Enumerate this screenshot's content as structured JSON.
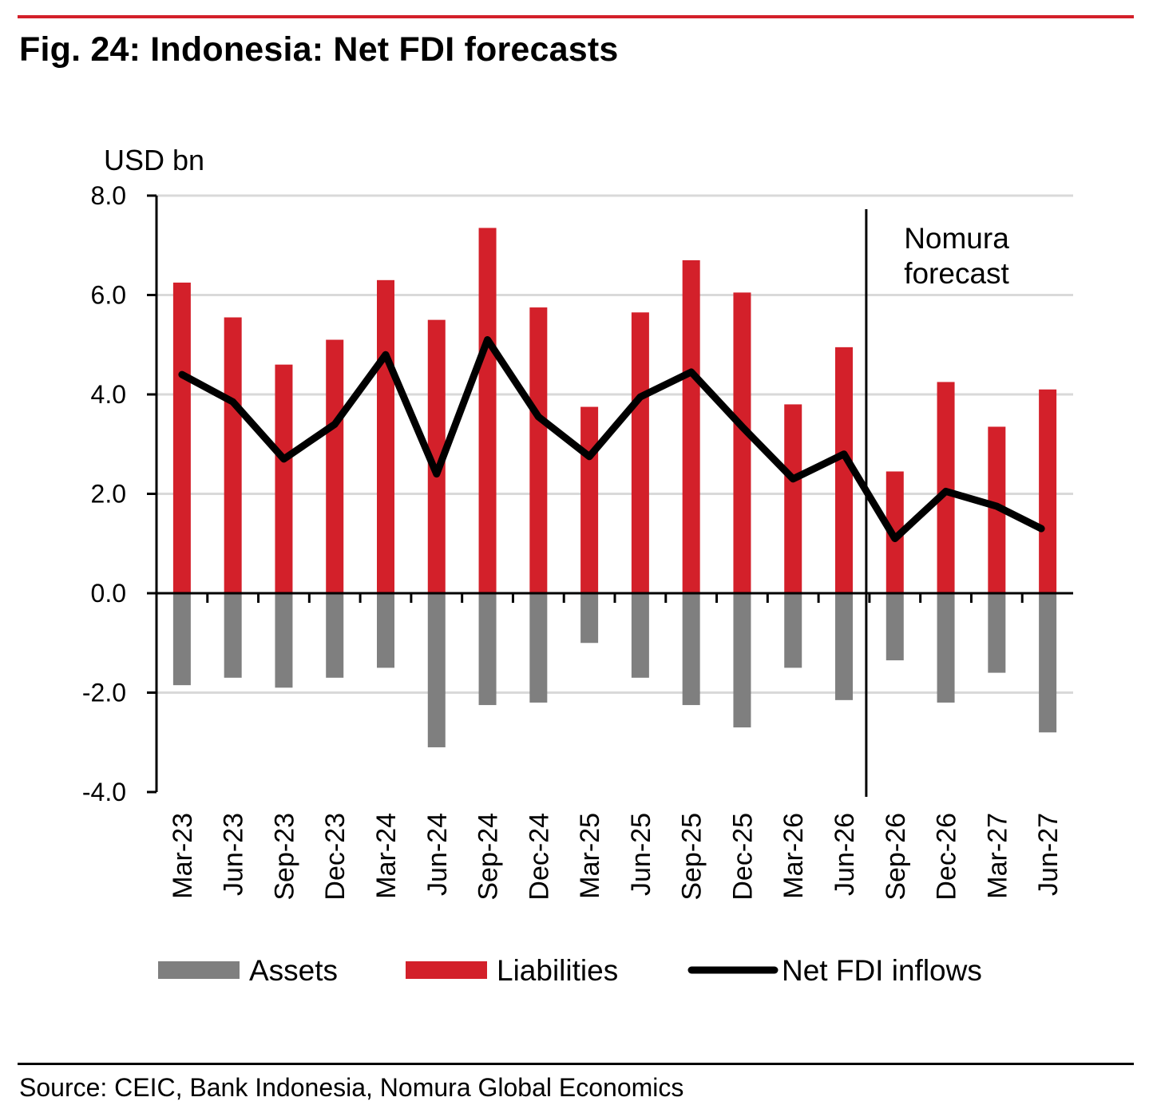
{
  "figure": {
    "title": "Fig. 24: Indonesia: Net FDI forecasts",
    "source": "Source: CEIC, Bank Indonesia, Nomura Global Economics"
  },
  "chart_data": {
    "type": "bar",
    "ylabel": "USD bn",
    "ylim": [
      -4.0,
      8.0
    ],
    "yticks": [
      "8.0",
      "6.0",
      "4.0",
      "2.0",
      "0.0",
      "-2.0",
      "-4.0"
    ],
    "ytick_values": [
      8,
      6,
      4,
      2,
      0,
      -2,
      -4
    ],
    "grid": true,
    "categories": [
      "Mar-23",
      "Jun-23",
      "Sep-23",
      "Dec-23",
      "Mar-24",
      "Jun-24",
      "Sep-24",
      "Dec-24",
      "Mar-25",
      "Jun-25",
      "Sep-25",
      "Dec-25",
      "Mar-26",
      "Jun-26",
      "Sep-26",
      "Dec-26",
      "Mar-27",
      "Jun-27"
    ],
    "series": [
      {
        "name": "Assets",
        "type": "bar",
        "color": "#7f7f7f",
        "values": [
          -1.85,
          -1.7,
          -1.9,
          -1.7,
          -1.5,
          -3.1,
          -2.25,
          -2.2,
          -1.0,
          -1.7,
          -2.25,
          -2.7,
          -1.5,
          -2.15,
          -1.35,
          -2.2,
          -1.6,
          -2.8
        ]
      },
      {
        "name": "Liabilities",
        "type": "bar",
        "color": "#d3202a",
        "values": [
          6.25,
          5.55,
          4.6,
          5.1,
          6.3,
          5.5,
          7.35,
          5.75,
          3.75,
          5.65,
          6.7,
          6.05,
          3.8,
          4.95,
          2.45,
          4.25,
          3.35,
          4.1
        ]
      },
      {
        "name": "Net FDI inflows",
        "type": "line",
        "color": "#000000",
        "values": [
          4.4,
          3.85,
          2.7,
          3.4,
          4.8,
          2.4,
          5.1,
          3.55,
          2.75,
          3.95,
          4.45,
          3.35,
          2.3,
          2.8,
          1.1,
          2.05,
          1.75,
          1.3
        ]
      }
    ],
    "annotation": {
      "text_line1": "Nomura",
      "text_line2": "forecast",
      "divider_after": "Jun-26"
    },
    "legend_placement": "bottom"
  }
}
